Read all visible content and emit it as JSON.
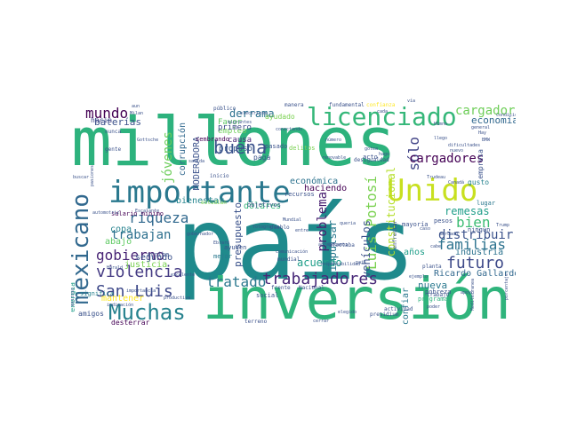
{
  "words": [
    {
      "text": "país",
      "color": "#1f8a8c"
    },
    {
      "text": "millones",
      "color": "#2db27d"
    },
    {
      "text": "inversión",
      "color": "#2fb47c"
    },
    {
      "text": "importante",
      "color": "#2a788e"
    },
    {
      "text": "Unido",
      "color": "#c8e020"
    },
    {
      "text": "licenciado",
      "color": "#35b779"
    },
    {
      "text": "mexicano",
      "color": "#31688e"
    },
    {
      "text": "Muchas",
      "color": "#26828e"
    },
    {
      "text": "buena",
      "color": "#3b528b"
    },
    {
      "text": "trabajadores",
      "color": "#482878"
    },
    {
      "text": "San Luis",
      "color": "#3e4989"
    },
    {
      "text": "violencia",
      "color": "#443a83"
    },
    {
      "text": "gobierno",
      "color": "#482475"
    },
    {
      "text": "futuro",
      "color": "#3e4a89"
    },
    {
      "text": "familias",
      "color": "#2c728e"
    },
    {
      "text": "tratado",
      "color": "#2a788e"
    },
    {
      "text": "bien",
      "color": "#3dbc74"
    },
    {
      "text": "riqueza",
      "color": "#30688e"
    },
    {
      "text": "jóvenes",
      "color": "#6ccd5a"
    },
    {
      "text": "mundo",
      "color": "#440154"
    },
    {
      "text": "Luis Potosí",
      "color": "#7ad151"
    },
    {
      "text": "sólo",
      "color": "#414487"
    },
    {
      "text": "cargador",
      "color": "#6ece58"
    },
    {
      "text": "cargadores",
      "color": "#440154"
    },
    {
      "text": "distribuir",
      "color": "#3b528b"
    },
    {
      "text": "trabajan",
      "color": "#2d708e"
    },
    {
      "text": "problema",
      "color": "#481f70"
    },
    {
      "text": "derrama",
      "color": "#2c728e"
    },
    {
      "text": "baterías",
      "color": "#3b528b"
    },
    {
      "text": "economía",
      "color": "#31688e"
    },
    {
      "text": "remesas",
      "color": "#1f9e89"
    },
    {
      "text": "vehículos",
      "color": "#3b528b"
    },
    {
      "text": "impulsar",
      "color": "#2a788e"
    },
    {
      "text": "acuerdo",
      "color": "#1f9e89"
    },
    {
      "text": "constitucional",
      "color": "#b5de2b"
    },
    {
      "text": "corrupción",
      "color": "#31688e"
    },
    {
      "text": "MODERADORA",
      "color": "#3b528b"
    },
    {
      "text": "económica",
      "color": "#2c728e"
    },
    {
      "text": "haciendo",
      "color": "#440154"
    },
    {
      "text": "Ricardo Gallardo",
      "color": "#31688e"
    },
    {
      "text": "presupuesto",
      "color": "#3b528b"
    },
    {
      "text": "nueva",
      "color": "#2a788e"
    },
    {
      "text": "segundo",
      "color": "#3b528b"
    },
    {
      "text": "abajo",
      "color": "#5ec962"
    },
    {
      "text": "bienestar",
      "color": "#25858e"
    },
    {
      "text": "dólares",
      "color": "#35b779"
    },
    {
      "text": "copa",
      "color": "#26828e"
    },
    {
      "text": "justicia",
      "color": "#7ad151"
    },
    {
      "text": "mantener",
      "color": "#fde725"
    },
    {
      "text": "industria",
      "color": "#2c728e"
    },
    {
      "text": "años",
      "color": "#1f9e89"
    },
    {
      "text": "confiar",
      "color": "#2a788e"
    },
    {
      "text": "empleo",
      "color": "#6ece58"
    },
    {
      "text": "Favor",
      "color": "#5ec962"
    },
    {
      "text": "primero",
      "color": "#3e4a89"
    },
    {
      "text": "causa",
      "color": "#482878"
    },
    {
      "text": "propuso",
      "color": "#38588c"
    },
    {
      "text": "paga",
      "color": "#3b528b"
    },
    {
      "text": "sembrando",
      "color": "#440154"
    },
    {
      "text": "ayudado",
      "color": "#7ad151"
    },
    {
      "text": "pasado",
      "color": "#3b528b"
    },
    {
      "text": "delitos",
      "color": "#7ad151"
    },
    {
      "text": "acto",
      "color": "#3b528b"
    },
    {
      "text": "energía",
      "color": "#1f9e89"
    },
    {
      "text": "empresa",
      "color": "#3b528b"
    },
    {
      "text": "gusto",
      "color": "#26828e"
    },
    {
      "text": "lugar",
      "color": "#2a788e"
    },
    {
      "text": "pesos",
      "color": "#3b528b"
    },
    {
      "text": "mayoría",
      "color": "#3b528b"
    },
    {
      "text": "ningún",
      "color": "#3b528b"
    },
    {
      "text": "social",
      "color": "#3b528b"
    },
    {
      "text": "pobreza",
      "color": "#3b528b"
    },
    {
      "text": "programa",
      "color": "#2db27d"
    },
    {
      "text": "desterrar",
      "color": "#440154"
    },
    {
      "text": "amigos",
      "color": "#3b528b"
    },
    {
      "text": "hacia",
      "color": "#414487"
    },
    {
      "text": "salario mínimo",
      "color": "#440154"
    },
    {
      "text": "significa",
      "color": "#26828e"
    },
    {
      "text": "arriba",
      "color": "#3b528b"
    },
    {
      "text": "mejor",
      "color": "#2a788e"
    },
    {
      "text": "ayuden",
      "color": "#3b528b"
    },
    {
      "text": "recursos",
      "color": "#3b528b"
    },
    {
      "text": "objetivos",
      "color": "#3b528b"
    },
    {
      "text": "público",
      "color": "#3b528b"
    },
    {
      "text": "manera",
      "color": "#3b528b"
    },
    {
      "text": "fundamental",
      "color": "#3b528b"
    },
    {
      "text": "confianza",
      "color": "#fde725"
    },
    {
      "text": "trabajo",
      "color": "#3b528b"
    },
    {
      "text": "enfrentar",
      "color": "#3b528b"
    },
    {
      "text": "desigualdad",
      "color": "#3b528b"
    },
    {
      "text": "planta",
      "color": "#3b528b"
    },
    {
      "text": "mundial",
      "color": "#3b528b"
    },
    {
      "text": "frente",
      "color": "#3b528b"
    },
    {
      "text": "Nacional",
      "color": "#3b528b"
    },
    {
      "text": "pueblo",
      "color": "#3b528b"
    },
    {
      "text": "terreno",
      "color": "#3b528b"
    },
    {
      "text": "actividad",
      "color": "#3b528b"
    },
    {
      "text": "presidium",
      "color": "#3b528b"
    },
    {
      "text": "afectaba",
      "color": "#3b528b"
    },
    {
      "text": "gente",
      "color": "#3b528b"
    },
    {
      "text": "nunca",
      "color": "#3b528b"
    },
    {
      "text": "inicio",
      "color": "#3b528b"
    },
    {
      "text": "estudian",
      "color": "#7ad151"
    },
    {
      "text": "Gottsche",
      "color": "#3b528b"
    },
    {
      "text": "Milan",
      "color": "#3b528b"
    },
    {
      "text": "aun",
      "color": "#3b528b"
    },
    {
      "text": "BMW",
      "color": "#3b528b"
    },
    {
      "text": "Hay",
      "color": "#3b528b"
    },
    {
      "text": "hago",
      "color": "#3b528b"
    },
    {
      "text": "poder",
      "color": "#3b528b"
    },
    {
      "text": "Mediterranea",
      "color": "#3b528b"
    },
    {
      "text": "Canadá",
      "color": "#3b528b"
    },
    {
      "text": "Trudeau",
      "color": "#3b528b"
    },
    {
      "text": "cabe",
      "color": "#3b528b"
    },
    {
      "text": "nuevo",
      "color": "#3b528b"
    },
    {
      "text": "llego",
      "color": "#3b528b"
    },
    {
      "text": "Harald",
      "color": "#3b528b"
    },
    {
      "text": "Escalante",
      "color": "#3b528b"
    },
    {
      "text": "gobernador",
      "color": "#3b528b"
    },
    {
      "text": "Ebrard",
      "color": "#3b528b"
    },
    {
      "text": "pasiones",
      "color": "#3b528b"
    },
    {
      "text": "automotriz",
      "color": "#3b528b"
    },
    {
      "text": "importancia",
      "color": "#3b528b"
    },
    {
      "text": "indicación",
      "color": "#3b528b"
    },
    {
      "text": "excelente",
      "color": "#3b528b"
    },
    {
      "text": "productiva",
      "color": "#3b528b"
    },
    {
      "text": "fotografía",
      "color": "#3b528b"
    },
    {
      "text": "comunicación",
      "color": "#3b528b"
    },
    {
      "text": "renovable",
      "color": "#3b528b"
    },
    {
      "text": "conectando",
      "color": "#3b528b"
    },
    {
      "text": "eléctricos",
      "color": "#3b528b"
    },
    {
      "text": "migrantes",
      "color": "#3b528b"
    },
    {
      "text": "agradecemos",
      "color": "#3b528b"
    },
    {
      "text": "responsabilidad",
      "color": "#3b528b"
    },
    {
      "text": "condiciones",
      "color": "#3b528b"
    },
    {
      "text": "número",
      "color": "#3b528b"
    },
    {
      "text": "dificultades",
      "color": "#3b528b"
    },
    {
      "text": "general",
      "color": "#3b528b"
    },
    {
      "text": "Trump",
      "color": "#3b528b"
    },
    {
      "text": "queria",
      "color": "#3b528b"
    },
    {
      "text": "cerrar",
      "color": "#3b528b"
    },
    {
      "text": "gotea",
      "color": "#3b528b"
    },
    {
      "text": "mercado",
      "color": "#3b528b"
    },
    {
      "text": "ejemplo",
      "color": "#3b528b"
    },
    {
      "text": "caso",
      "color": "#3b528b"
    },
    {
      "text": "Mundial",
      "color": "#3b528b"
    },
    {
      "text": "apoyo",
      "color": "#3b528b"
    },
    {
      "text": "cada",
      "color": "#3b528b"
    },
    {
      "text": "pais",
      "color": "#3b528b"
    },
    {
      "text": "entre",
      "color": "#3b528b"
    },
    {
      "text": "salida",
      "color": "#3b528b"
    },
    {
      "text": "buscar",
      "color": "#3b528b"
    },
    {
      "text": "exitoso",
      "color": "#3b528b"
    },
    {
      "text": "elegido",
      "color": "#3b528b"
    },
    {
      "text": "Himno",
      "color": "#3b528b"
    },
    {
      "text": "porcentaje",
      "color": "#3b528b"
    },
    {
      "text": "vía",
      "color": "#3b528b"
    }
  ]
}
